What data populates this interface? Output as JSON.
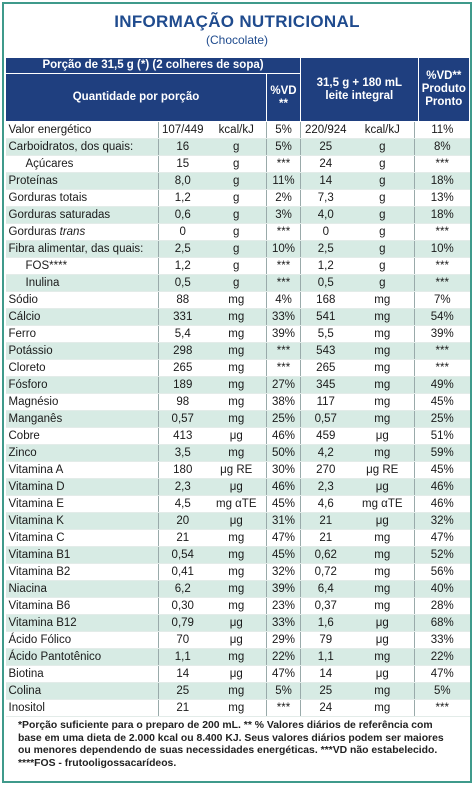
{
  "header": {
    "title": "INFORMAÇÃO NUTRICIONAL",
    "subtitle": "(Chocolate)"
  },
  "table": {
    "portion": "Porção de 31,5 g (*) (2 colheres de sopa)",
    "columns": [
      "Quantidade por porção",
      "%VD **",
      "31,5 g + 180 mL leite integral",
      "%VD** Produto Pronto"
    ],
    "rows": [
      {
        "cells": [
          "Valor energético",
          "107/449",
          "kcal/kJ",
          "5%",
          "220/924",
          "kcal/kJ",
          "11%"
        ]
      },
      {
        "cells": [
          "Carboidratos, dos quais:",
          "16",
          "g",
          "5%",
          "25",
          "g",
          "8%"
        ]
      },
      {
        "cells": [
          "Açúcares",
          "15",
          "g",
          "***",
          "24",
          "g",
          "***"
        ],
        "indent": true
      },
      {
        "cells": [
          "Proteínas",
          "8,0",
          "g",
          "11%",
          "14",
          "g",
          "18%"
        ]
      },
      {
        "cells": [
          "Gorduras totais",
          "1,2",
          "g",
          "2%",
          "7,3",
          "g",
          "13%"
        ]
      },
      {
        "cells": [
          "Gorduras saturadas",
          "0,6",
          "g",
          "3%",
          "4,0",
          "g",
          "18%"
        ]
      },
      {
        "cells": [
          "Gorduras",
          "0",
          "g",
          "***",
          "0",
          "g",
          "***"
        ],
        "italic_suffix": "trans"
      },
      {
        "cells": [
          "Fibra alimentar, das quais:",
          "2,5",
          "g",
          "10%",
          "2,5",
          "g",
          "10%"
        ]
      },
      {
        "cells": [
          "FOS****",
          "1,2",
          "g",
          "***",
          "1,2",
          "g",
          "***"
        ],
        "indent": true
      },
      {
        "cells": [
          "Inulina",
          "0,5",
          "g",
          "***",
          "0,5",
          "g",
          "***"
        ],
        "indent": true
      },
      {
        "cells": [
          "Sódio",
          "88",
          "mg",
          "4%",
          "168",
          "mg",
          "7%"
        ]
      },
      {
        "cells": [
          "Cálcio",
          "331",
          "mg",
          "33%",
          "541",
          "mg",
          "54%"
        ]
      },
      {
        "cells": [
          "Ferro",
          "5,4",
          "mg",
          "39%",
          "5,5",
          "mg",
          "39%"
        ]
      },
      {
        "cells": [
          "Potássio",
          "298",
          "mg",
          "***",
          "543",
          "mg",
          "***"
        ]
      },
      {
        "cells": [
          "Cloreto",
          "265",
          "mg",
          "***",
          "265",
          "mg",
          "***"
        ]
      },
      {
        "cells": [
          "Fósforo",
          "189",
          "mg",
          "27%",
          "345",
          "mg",
          "49%"
        ]
      },
      {
        "cells": [
          "Magnésio",
          "98",
          "mg",
          "38%",
          "117",
          "mg",
          "45%"
        ]
      },
      {
        "cells": [
          "Manganês",
          "0,57",
          "mg",
          "25%",
          "0,57",
          "mg",
          "25%"
        ]
      },
      {
        "cells": [
          "Cobre",
          "413",
          "μg",
          "46%",
          "459",
          "μg",
          "51%"
        ]
      },
      {
        "cells": [
          "Zinco",
          "3,5",
          "mg",
          "50%",
          "4,2",
          "mg",
          "59%"
        ]
      },
      {
        "cells": [
          "Vitamina A",
          "180",
          "μg RE",
          "30%",
          "270",
          "μg RE",
          "45%"
        ]
      },
      {
        "cells": [
          "Vitamina D",
          "2,3",
          "μg",
          "46%",
          "2,3",
          "μg",
          "46%"
        ]
      },
      {
        "cells": [
          "Vitamina E",
          "4,5",
          "mg αTE",
          "45%",
          "4,6",
          "mg αTE",
          "46%"
        ]
      },
      {
        "cells": [
          "Vitamina K",
          "20",
          "μg",
          "31%",
          "21",
          "μg",
          "32%"
        ]
      },
      {
        "cells": [
          "Vitamina C",
          "21",
          "mg",
          "47%",
          "21",
          "mg",
          "47%"
        ]
      },
      {
        "cells": [
          "Vitamina B1",
          "0,54",
          "mg",
          "45%",
          "0,62",
          "mg",
          "52%"
        ]
      },
      {
        "cells": [
          "Vitamina B2",
          "0,41",
          "mg",
          "32%",
          "0,72",
          "mg",
          "56%"
        ]
      },
      {
        "cells": [
          "Niacina",
          "6,2",
          "mg",
          "39%",
          "6,4",
          "mg",
          "40%"
        ]
      },
      {
        "cells": [
          "Vitamina B6",
          "0,30",
          "mg",
          "23%",
          "0,37",
          "mg",
          "28%"
        ]
      },
      {
        "cells": [
          "Vitamina B12",
          "0,79",
          "μg",
          "33%",
          "1,6",
          "μg",
          "68%"
        ]
      },
      {
        "cells": [
          "Ácido Fólico",
          "70",
          "μg",
          "29%",
          "79",
          "μg",
          "33%"
        ]
      },
      {
        "cells": [
          "Ácido Pantotênico",
          "1,1",
          "mg",
          "22%",
          "1,1",
          "mg",
          "22%"
        ]
      },
      {
        "cells": [
          "Biotina",
          "14",
          "μg",
          "47%",
          "14",
          "μg",
          "47%"
        ]
      },
      {
        "cells": [
          "Colina",
          "25",
          "mg",
          "5%",
          "25",
          "mg",
          "5%"
        ]
      },
      {
        "cells": [
          "Inositol",
          "21",
          "mg",
          "***",
          "24",
          "mg",
          "***"
        ]
      }
    ]
  },
  "footnotes": [
    "*Porção suficiente para o preparo de 200 mL. ** % Valores diários de referência com base em uma dieta de 2.000 kcal ou 8.400 KJ. Seus valores diários podem ser maiores ou menores dependendo de suas necessidades energéticas. ***VD não estabelecido.",
    "****FOS - frutooligossacarídeos."
  ]
}
